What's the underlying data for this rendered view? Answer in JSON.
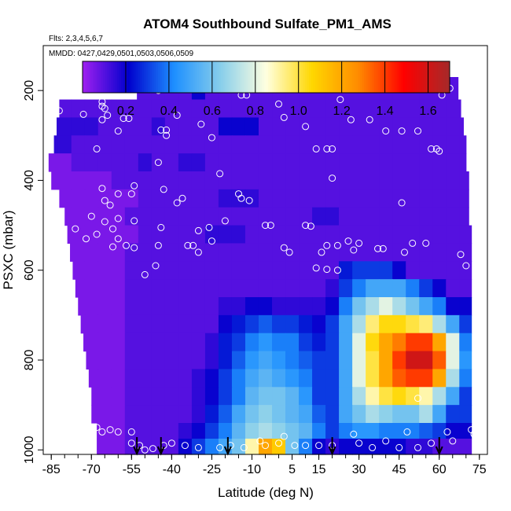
{
  "chart_data": {
    "type": "heatmap",
    "title": "ATOM4 Southbound Sulfate_PM1_AMS",
    "subtitle": "Flts: 2,3,4,5,6,7",
    "annotation": "MMDD: 0427,0429,0501,0503,0506,0509",
    "xlabel": "Latitude (deg N)",
    "ylabel": "PSXC (mbar)",
    "xlim": [
      -88,
      78
    ],
    "ylim": [
      1010,
      100
    ],
    "y_reversed": true,
    "x_ticks": [
      -85,
      -70,
      -55,
      -40,
      -25,
      -10,
      5,
      15,
      30,
      45,
      60,
      75
    ],
    "x_tick_labels": [
      "-85",
      "-70",
      "-55",
      "-40",
      "-25",
      "-10",
      "5",
      "15",
      "30",
      "45",
      "60",
      "75"
    ],
    "y_ticks": [
      200,
      400,
      600,
      800,
      1000
    ],
    "y_tick_labels": [
      "200",
      "400",
      "600",
      "800",
      "1000"
    ],
    "colorbar": {
      "min": 0.0,
      "max": 1.7,
      "ticks": [
        0.2,
        0.4,
        0.6,
        0.8,
        1.0,
        1.2,
        1.4,
        1.6
      ],
      "tick_labels": [
        "0.2",
        "0.4",
        "0.6",
        "0.8",
        "1.0",
        "1.2",
        "1.4",
        "1.6"
      ],
      "colors": [
        "#a020f0",
        "#0000cd",
        "#1e90ff",
        "#87ceeb",
        "#ffffe0",
        "#ffd700",
        "#ff8c00",
        "#ff0000",
        "#a52a2a"
      ]
    },
    "layer_edges": [
      170,
      220,
      260,
      300,
      340,
      380,
      420,
      460,
      500,
      540,
      580,
      620,
      660,
      700,
      740,
      780,
      820,
      860,
      900,
      940,
      975,
      1010
    ],
    "layers_lat_min": [
      -53,
      -82,
      -83,
      -84,
      -86,
      -85,
      -82,
      -80,
      -79,
      -78,
      -77,
      -76,
      -75,
      -74,
      -73,
      -72,
      -71,
      -70,
      -70,
      -68,
      -68
    ],
    "layers_lat_max": [
      67,
      68,
      69,
      70,
      70,
      71,
      71,
      71,
      72,
      72,
      72,
      72,
      72,
      72,
      72,
      72,
      72,
      72,
      72,
      72,
      72
    ],
    "column_lats": [
      -85,
      -80,
      -75,
      -70,
      -65,
      -60,
      -55,
      -50,
      -45,
      -40,
      -35,
      -30,
      -25,
      -20,
      -15,
      -10,
      -5,
      0,
      5,
      10,
      15,
      20,
      25,
      30,
      35,
      40,
      45,
      50,
      55,
      60,
      65,
      70
    ],
    "layer_values": [
      [
        0.1,
        0.1,
        0.1,
        0.1,
        0.1,
        0.1,
        0.1,
        0.1,
        0.1,
        0.1,
        0.1,
        0.2,
        0.1,
        0.1,
        0.1,
        0.1,
        0.1,
        0.1,
        0.1,
        0.1,
        0.1,
        0.1,
        0.1,
        0.1,
        0.1,
        0.1,
        0.1,
        0.1,
        0.1,
        0.1,
        0.1,
        0.1
      ],
      [
        0.1,
        0.1,
        0.1,
        0.1,
        0.1,
        0.1,
        0.1,
        0.1,
        0.1,
        0.1,
        0.1,
        0.1,
        0.1,
        0.1,
        0.1,
        0.1,
        0.1,
        0.1,
        0.1,
        0.1,
        0.1,
        0.1,
        0.1,
        0.1,
        0.1,
        0.1,
        0.1,
        0.1,
        0.1,
        0.1,
        0.1,
        0.1
      ],
      [
        0.15,
        0.15,
        0.15,
        0.15,
        0.1,
        0.1,
        0.1,
        0.1,
        0.15,
        0.1,
        0.1,
        0.1,
        0.1,
        0.2,
        0.2,
        0.2,
        0.1,
        0.1,
        0.1,
        0.1,
        0.1,
        0.1,
        0.1,
        0.1,
        0.1,
        0.1,
        0.1,
        0.1,
        0.1,
        0.1,
        0.1,
        0.1
      ],
      [
        0.15,
        0.15,
        0.1,
        0.1,
        0.1,
        0.1,
        0.1,
        0.1,
        0.1,
        0.1,
        0.1,
        0.1,
        0.1,
        0.1,
        0.1,
        0.1,
        0.1,
        0.1,
        0.1,
        0.1,
        0.1,
        0.1,
        0.1,
        0.1,
        0.1,
        0.1,
        0.1,
        0.1,
        0.1,
        0.1,
        0.1,
        0.1
      ],
      [
        0.05,
        0.05,
        0.1,
        0.1,
        0.1,
        0.1,
        0.1,
        0.15,
        0.1,
        0.1,
        0.15,
        0.15,
        0.1,
        0.1,
        0.1,
        0.1,
        0.1,
        0.1,
        0.1,
        0.1,
        0.1,
        0.1,
        0.1,
        0.1,
        0.1,
        0.1,
        0.1,
        0.1,
        0.1,
        0.1,
        0.1,
        0.1
      ],
      [
        0.05,
        0.05,
        0.05,
        0.05,
        0.05,
        0.1,
        0.1,
        0.1,
        0.1,
        0.1,
        0.1,
        0.1,
        0.1,
        0.1,
        0.1,
        0.1,
        0.1,
        0.1,
        0.1,
        0.1,
        0.1,
        0.1,
        0.1,
        0.1,
        0.1,
        0.1,
        0.1,
        0.1,
        0.1,
        0.1,
        0.1,
        0.1
      ],
      [
        0.05,
        0.05,
        0.05,
        0.05,
        0.05,
        0.05,
        0.05,
        0.1,
        0.1,
        0.1,
        0.1,
        0.1,
        0.1,
        0.15,
        0.15,
        0.15,
        0.1,
        0.1,
        0.1,
        0.1,
        0.1,
        0.1,
        0.1,
        0.1,
        0.1,
        0.1,
        0.1,
        0.1,
        0.1,
        0.1,
        0.1,
        0.1
      ],
      [
        0.05,
        0.05,
        0.05,
        0.05,
        0.05,
        0.05,
        0.1,
        0.1,
        0.1,
        0.1,
        0.1,
        0.1,
        0.1,
        0.1,
        0.1,
        0.1,
        0.1,
        0.1,
        0.1,
        0.1,
        0.15,
        0.15,
        0.1,
        0.1,
        0.1,
        0.1,
        0.1,
        0.1,
        0.1,
        0.1,
        0.1,
        0.1
      ],
      [
        0.05,
        0.05,
        0.05,
        0.05,
        0.05,
        0.05,
        0.05,
        0.1,
        0.1,
        0.1,
        0.1,
        0.1,
        0.15,
        0.15,
        0.15,
        0.1,
        0.1,
        0.1,
        0.1,
        0.1,
        0.1,
        0.1,
        0.1,
        0.1,
        0.1,
        0.1,
        0.1,
        0.1,
        0.1,
        0.1,
        0.1,
        0.1
      ],
      [
        0.05,
        0.05,
        0.05,
        0.05,
        0.05,
        0.05,
        0.1,
        0.1,
        0.1,
        0.1,
        0.1,
        0.1,
        0.1,
        0.1,
        0.1,
        0.1,
        0.1,
        0.1,
        0.1,
        0.1,
        0.1,
        0.1,
        0.1,
        0.1,
        0.1,
        0.1,
        0.1,
        0.1,
        0.1,
        0.1,
        0.1,
        0.1
      ],
      [
        0.05,
        0.05,
        0.05,
        0.05,
        0.05,
        0.05,
        0.1,
        0.1,
        0.1,
        0.1,
        0.1,
        0.1,
        0.1,
        0.1,
        0.1,
        0.1,
        0.1,
        0.1,
        0.1,
        0.1,
        0.1,
        0.1,
        0.25,
        0.3,
        0.3,
        0.3,
        0.2,
        0.1,
        0.1,
        0.1,
        0.1,
        0.1
      ],
      [
        0.05,
        0.05,
        0.05,
        0.05,
        0.05,
        0.05,
        0.1,
        0.1,
        0.1,
        0.1,
        0.1,
        0.1,
        0.1,
        0.1,
        0.1,
        0.1,
        0.1,
        0.1,
        0.1,
        0.1,
        0.1,
        0.15,
        0.3,
        0.4,
        0.5,
        0.5,
        0.5,
        0.4,
        0.3,
        0.2,
        0.1,
        0.1
      ],
      [
        0.05,
        0.05,
        0.05,
        0.05,
        0.05,
        0.05,
        0.1,
        0.1,
        0.1,
        0.1,
        0.1,
        0.1,
        0.1,
        0.15,
        0.15,
        0.2,
        0.2,
        0.15,
        0.15,
        0.15,
        0.15,
        0.2,
        0.4,
        0.6,
        0.7,
        0.8,
        0.7,
        0.6,
        0.5,
        0.4,
        0.2,
        0.2
      ],
      [
        0.05,
        0.05,
        0.05,
        0.05,
        0.05,
        0.05,
        0.1,
        0.1,
        0.1,
        0.1,
        0.1,
        0.1,
        0.1,
        0.2,
        0.25,
        0.3,
        0.35,
        0.3,
        0.3,
        0.25,
        0.2,
        0.3,
        0.5,
        0.7,
        0.95,
        1.05,
        1.05,
        1.0,
        0.95,
        0.7,
        0.5,
        0.3
      ],
      [
        0.05,
        0.05,
        0.05,
        0.05,
        0.05,
        0.05,
        0.1,
        0.1,
        0.1,
        0.1,
        0.1,
        0.1,
        0.15,
        0.25,
        0.3,
        0.4,
        0.45,
        0.4,
        0.4,
        0.3,
        0.25,
        0.3,
        0.5,
        0.8,
        1.05,
        1.2,
        1.3,
        1.4,
        1.4,
        1.2,
        0.8,
        0.4
      ],
      [
        0.05,
        0.05,
        0.05,
        0.05,
        0.05,
        0.05,
        0.1,
        0.1,
        0.1,
        0.1,
        0.1,
        0.1,
        0.15,
        0.25,
        0.35,
        0.45,
        0.5,
        0.45,
        0.4,
        0.35,
        0.3,
        0.3,
        0.5,
        0.8,
        1.0,
        1.2,
        1.4,
        1.6,
        1.6,
        1.35,
        0.8,
        0.45
      ],
      [
        0.05,
        0.05,
        0.05,
        0.05,
        0.05,
        0.05,
        0.1,
        0.1,
        0.1,
        0.1,
        0.1,
        0.15,
        0.2,
        0.3,
        0.4,
        0.5,
        0.55,
        0.5,
        0.45,
        0.4,
        0.3,
        0.3,
        0.5,
        0.8,
        1.0,
        1.2,
        1.35,
        1.4,
        1.4,
        1.2,
        0.7,
        0.4
      ],
      [
        0.05,
        0.05,
        0.05,
        0.05,
        0.05,
        0.05,
        0.1,
        0.1,
        0.1,
        0.1,
        0.1,
        0.15,
        0.2,
        0.3,
        0.4,
        0.55,
        0.6,
        0.6,
        0.55,
        0.45,
        0.3,
        0.3,
        0.5,
        0.7,
        0.9,
        1.0,
        1.05,
        1.0,
        0.9,
        0.7,
        0.5,
        0.3
      ],
      [
        0.05,
        0.05,
        0.05,
        0.05,
        0.05,
        0.05,
        0.1,
        0.1,
        0.1,
        0.1,
        0.1,
        0.15,
        0.25,
        0.35,
        0.5,
        0.6,
        0.65,
        0.6,
        0.55,
        0.5,
        0.35,
        0.3,
        0.5,
        0.6,
        0.7,
        0.65,
        0.6,
        0.6,
        0.7,
        0.5,
        0.3,
        0.3
      ],
      [
        0.05,
        0.05,
        0.05,
        0.05,
        0.05,
        0.05,
        0.1,
        0.1,
        0.1,
        0.1,
        0.15,
        0.2,
        0.3,
        0.4,
        0.55,
        0.65,
        0.7,
        0.65,
        0.6,
        0.55,
        0.4,
        0.3,
        0.4,
        0.45,
        0.45,
        0.4,
        0.4,
        0.4,
        0.35,
        0.3,
        0.2,
        0.2
      ],
      [
        0.05,
        0.05,
        0.05,
        0.05,
        0.05,
        0.05,
        0.1,
        0.1,
        0.1,
        0.1,
        0.2,
        0.3,
        0.4,
        0.5,
        0.6,
        0.9,
        1.2,
        1.1,
        0.6,
        0.4,
        0.2,
        0.15,
        0.2,
        0.2,
        0.2,
        0.2,
        0.2,
        0.15,
        0.15,
        0.1,
        0.1,
        0.1
      ]
    ],
    "points": [
      [
        -46,
        195
      ],
      [
        -45,
        200
      ],
      [
        -63,
        210
      ],
      [
        -66,
        225
      ],
      [
        -66,
        235
      ],
      [
        -65,
        240
      ],
      [
        -82,
        245
      ],
      [
        -86,
        248
      ],
      [
        -73,
        253
      ],
      [
        -64,
        255
      ],
      [
        -66,
        265
      ],
      [
        -58,
        262
      ],
      [
        -56,
        262
      ],
      [
        -60,
        290
      ],
      [
        -44,
        288
      ],
      [
        -42,
        288
      ],
      [
        -38,
        255
      ],
      [
        -29,
        275
      ],
      [
        -25,
        305
      ],
      [
        -14,
        210
      ],
      [
        -12,
        210
      ],
      [
        0,
        230
      ],
      [
        2,
        260
      ],
      [
        10,
        280
      ],
      [
        23,
        220
      ],
      [
        27,
        265
      ],
      [
        34,
        265
      ],
      [
        40,
        290
      ],
      [
        46,
        290
      ],
      [
        52,
        290
      ],
      [
        61,
        210
      ],
      [
        64,
        195
      ],
      [
        70,
        205
      ],
      [
        57,
        330
      ],
      [
        59,
        330
      ],
      [
        60,
        335
      ],
      [
        14,
        330
      ],
      [
        18,
        330
      ],
      [
        20,
        330
      ],
      [
        20,
        395
      ],
      [
        -22,
        385
      ],
      [
        -45,
        360
      ],
      [
        -42,
        300
      ],
      [
        -68,
        330
      ],
      [
        -66,
        418
      ],
      [
        -55,
        430
      ],
      [
        -54,
        412
      ],
      [
        -60,
        430
      ],
      [
        -65,
        445
      ],
      [
        -63,
        455
      ],
      [
        -70,
        480
      ],
      [
        -60,
        485
      ],
      [
        -62,
        508
      ],
      [
        -76,
        508
      ],
      [
        -68,
        520
      ],
      [
        -72,
        530
      ],
      [
        -65,
        492
      ],
      [
        -54,
        490
      ],
      [
        -44,
        505
      ],
      [
        -30,
        512
      ],
      [
        -26,
        505
      ],
      [
        -15,
        430
      ],
      [
        -14,
        440
      ],
      [
        -11,
        445
      ],
      [
        -5,
        500
      ],
      [
        -3,
        500
      ],
      [
        10,
        500
      ],
      [
        12,
        502
      ],
      [
        46,
        450
      ],
      [
        73,
        440
      ],
      [
        -43,
        420
      ],
      [
        -38,
        450
      ],
      [
        -36,
        440
      ],
      [
        -20,
        490
      ],
      [
        -60,
        530
      ],
      [
        -62,
        548
      ],
      [
        -57,
        545
      ],
      [
        -54,
        550
      ],
      [
        -45,
        545
      ],
      [
        -34,
        545
      ],
      [
        -32,
        545
      ],
      [
        -30,
        560
      ],
      [
        -25,
        535
      ],
      [
        2,
        550
      ],
      [
        4,
        560
      ],
      [
        16,
        560
      ],
      [
        18,
        545
      ],
      [
        22,
        545
      ],
      [
        26,
        535
      ],
      [
        30,
        540
      ],
      [
        37,
        552
      ],
      [
        39,
        552
      ],
      [
        47,
        560
      ],
      [
        50,
        540
      ],
      [
        55,
        540
      ],
      [
        68,
        565
      ],
      [
        70,
        590
      ],
      [
        74,
        610
      ],
      [
        14,
        595
      ],
      [
        18,
        598
      ],
      [
        22,
        600
      ],
      [
        28,
        555
      ],
      [
        -46,
        590
      ],
      [
        -50,
        610
      ],
      [
        -72,
        950
      ],
      [
        -68,
        950
      ],
      [
        -66,
        960
      ],
      [
        -63,
        955
      ],
      [
        -60,
        960
      ],
      [
        -55,
        960
      ],
      [
        -55,
        985
      ],
      [
        -52,
        990
      ],
      [
        -50,
        1000
      ],
      [
        -47,
        997
      ],
      [
        -43,
        990
      ],
      [
        -40,
        985
      ],
      [
        -35,
        990
      ],
      [
        -30,
        995
      ],
      [
        -22,
        995
      ],
      [
        -18,
        990
      ],
      [
        -13,
        995
      ],
      [
        -7,
        980
      ],
      [
        -5,
        990
      ],
      [
        0,
        985
      ],
      [
        2,
        970
      ],
      [
        6,
        990
      ],
      [
        10,
        990
      ],
      [
        15,
        990
      ],
      [
        20,
        990
      ],
      [
        28,
        965
      ],
      [
        30,
        985
      ],
      [
        35,
        995
      ],
      [
        40,
        980
      ],
      [
        45,
        995
      ],
      [
        48,
        960
      ],
      [
        52,
        995
      ],
      [
        57,
        985
      ],
      [
        63,
        960
      ],
      [
        65,
        980
      ],
      [
        72,
        955
      ],
      [
        73,
        965
      ],
      [
        52,
        885
      ]
    ],
    "arrows_lat": [
      -53,
      -44,
      -19,
      20,
      60
    ]
  }
}
